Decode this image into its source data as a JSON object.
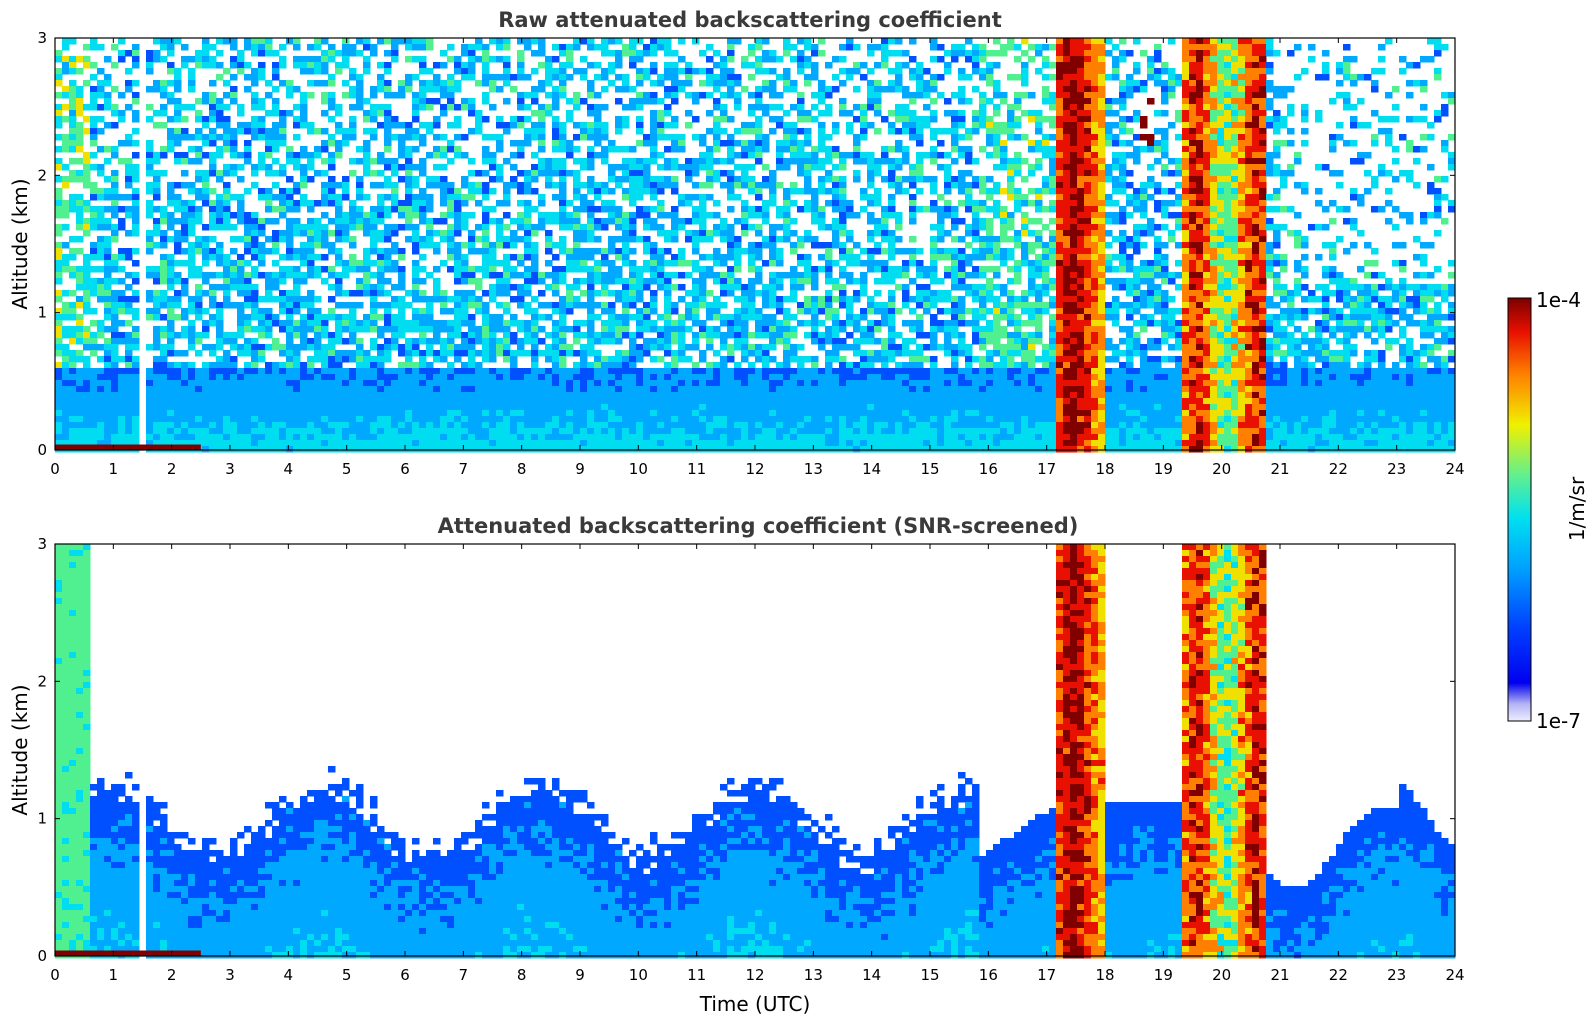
{
  "chart_data": [
    {
      "type": "heatmap",
      "title": "Raw attenuated backscattering coefficient",
      "xlabel": "",
      "ylabel": "Altitude (km)",
      "xlim": [
        0,
        24
      ],
      "ylim": [
        0,
        3
      ],
      "xticks": [
        "0",
        "1",
        "2",
        "3",
        "4",
        "5",
        "6",
        "7",
        "8",
        "9",
        "10",
        "11",
        "12",
        "13",
        "14",
        "15",
        "16",
        "17",
        "18",
        "19",
        "20",
        "21",
        "22",
        "23",
        "24"
      ],
      "yticks": [
        "0",
        "1",
        "2",
        "3"
      ],
      "colormap": "jet (log scale)",
      "grid": false,
      "features": [
        {
          "name": "noisy sky",
          "x": [
            0,
            24
          ],
          "y": [
            0.5,
            3
          ],
          "level": "low-mid (blue/cyan, speckled)"
        },
        {
          "name": "boundary layer",
          "x": [
            0,
            24
          ],
          "y": [
            0,
            0.6
          ],
          "level": "blue to light blue"
        },
        {
          "name": "data gap",
          "x": [
            1.45,
            1.55
          ],
          "y": [
            0,
            3
          ],
          "level": "no data"
        },
        {
          "name": "cloud column",
          "x": [
            17.2,
            18.0
          ],
          "y": [
            0,
            3
          ],
          "level": "high (red/orange/yellow)"
        },
        {
          "name": "cloud column",
          "x": [
            19.3,
            20.8
          ],
          "y": [
            0,
            3
          ],
          "level": "high (red/orange/yellow)"
        },
        {
          "name": "elevated layer",
          "x": [
            18.6,
            18.9
          ],
          "y": [
            2.2,
            2.6
          ],
          "level": "high (dark red)"
        }
      ]
    },
    {
      "type": "heatmap",
      "title": "Attenuated backscattering coefficient (SNR-screened)",
      "xlabel": "Time (UTC)",
      "ylabel": "Altitude (km)",
      "xlim": [
        0,
        24
      ],
      "ylim": [
        0,
        3
      ],
      "xticks": [
        "0",
        "1",
        "2",
        "3",
        "4",
        "5",
        "6",
        "7",
        "8",
        "9",
        "10",
        "11",
        "12",
        "13",
        "14",
        "15",
        "16",
        "17",
        "18",
        "19",
        "20",
        "21",
        "22",
        "23",
        "24"
      ],
      "yticks": [
        "0",
        "1",
        "2",
        "3"
      ],
      "colormap": "jet (log scale)",
      "grid": false,
      "features": [
        {
          "name": "early aerosol column",
          "x": [
            0,
            0.6
          ],
          "y": [
            0,
            3
          ],
          "level": "cyan/green"
        },
        {
          "name": "boundary layer",
          "x": [
            0,
            16.8
          ],
          "y": [
            0,
            1.3
          ],
          "level": "blue to light blue"
        },
        {
          "name": "data gap",
          "x": [
            1.45,
            1.55
          ],
          "y": [
            0,
            1.3
          ],
          "level": "no data"
        },
        {
          "name": "cloud column",
          "x": [
            17.2,
            18.0
          ],
          "y": [
            0,
            3
          ],
          "level": "high (red/orange/yellow)"
        },
        {
          "name": "cloud column",
          "x": [
            19.3,
            20.8
          ],
          "y": [
            0,
            3
          ],
          "level": "high (red/orange/yellow)"
        },
        {
          "name": "late boundary layer",
          "x": [
            20.8,
            24
          ],
          "y": [
            0,
            1.2
          ],
          "level": "blue"
        }
      ]
    }
  ],
  "colorbar": {
    "label": "1/m/sr",
    "max_label": "1e-4",
    "min_label": "1e-7",
    "range": [
      1e-07,
      0.0001
    ],
    "scale": "log"
  },
  "colors": {
    "dark_blue": "#0000cc",
    "blue": "#0050ff",
    "light_blue": "#00a8ff",
    "cyan": "#00dcf0",
    "green": "#50f090",
    "yellow": "#f0e000",
    "orange": "#ff8000",
    "red": "#e81000",
    "dark_red": "#800000"
  }
}
